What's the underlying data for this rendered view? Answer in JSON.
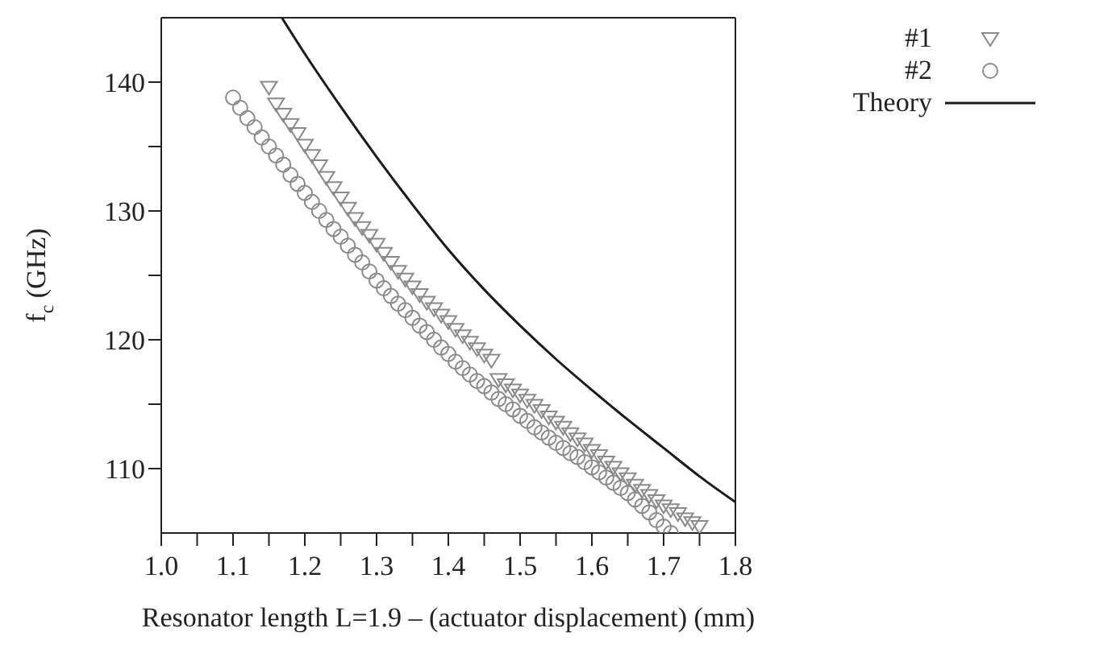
{
  "chart_data": {
    "type": "scatter",
    "xlabel": "Resonator length L=1.9 – (actuator displacement) (mm)",
    "ylabel": "f$_{c}$ (GHz)",
    "xlim": [
      1.0,
      1.8
    ],
    "ylim": [
      105,
      145
    ],
    "xticks": [
      {
        "value": 1.0,
        "label": "1.0"
      },
      {
        "value": 1.05,
        "label": null
      },
      1.1,
      {
        "value": 1.15,
        "label": null
      },
      1.2,
      {
        "value": 1.25,
        "label": null
      },
      1.3,
      {
        "value": 1.35,
        "label": null
      },
      1.4,
      {
        "value": 1.45,
        "label": null
      },
      1.5,
      {
        "value": 1.55,
        "label": null
      },
      1.6,
      {
        "value": 1.65,
        "label": null
      },
      1.7,
      {
        "value": 1.75,
        "label": null
      },
      1.8
    ],
    "yticks": [
      110,
      {
        "value": 115,
        "label": null
      },
      120,
      {
        "value": 125,
        "label": null
      },
      130,
      {
        "value": 135,
        "label": null
      },
      140
    ],
    "grid": false,
    "legend": "top right",
    "series": [
      {
        "name": "#1",
        "marker": "triangle",
        "color": "#8a8a8a",
        "x": [
          1.15,
          1.16,
          1.17,
          1.18,
          1.19,
          1.2,
          1.21,
          1.22,
          1.23,
          1.24,
          1.25,
          1.26,
          1.27,
          1.28,
          1.29,
          1.3,
          1.31,
          1.32,
          1.33,
          1.34,
          1.35,
          1.36,
          1.37,
          1.38,
          1.39,
          1.4,
          1.41,
          1.42,
          1.43,
          1.44,
          1.45,
          1.46,
          1.47,
          1.48,
          1.49,
          1.5,
          1.51,
          1.52,
          1.53,
          1.54,
          1.55,
          1.56,
          1.57,
          1.58,
          1.59,
          1.6,
          1.61,
          1.62,
          1.63,
          1.64,
          1.65,
          1.66,
          1.67,
          1.68,
          1.69,
          1.7,
          1.71,
          1.72,
          1.73,
          1.74,
          1.75
        ],
        "values": [
          139.6,
          138.3,
          137.5,
          136.7,
          136.0,
          135.1,
          134.3,
          133.5,
          132.6,
          131.8,
          131.0,
          130.2,
          129.4,
          128.7,
          128.1,
          127.4,
          126.7,
          126.0,
          125.3,
          124.7,
          124.1,
          123.5,
          122.9,
          122.4,
          121.9,
          121.4,
          120.8,
          120.3,
          119.8,
          119.3,
          118.8,
          118.4,
          116.9,
          116.5,
          116.1,
          115.7,
          115.3,
          114.9,
          114.5,
          114.0,
          113.6,
          113.2,
          112.7,
          112.3,
          111.9,
          111.4,
          111.0,
          110.5,
          110.1,
          109.6,
          109.2,
          108.7,
          108.3,
          107.9,
          107.5,
          107.1,
          106.8,
          106.5,
          106.1,
          105.8,
          105.5
        ]
      },
      {
        "name": "#2",
        "marker": "circle",
        "color": "#8a8a8a",
        "x": [
          1.1,
          1.11,
          1.12,
          1.13,
          1.14,
          1.15,
          1.16,
          1.17,
          1.18,
          1.19,
          1.2,
          1.21,
          1.22,
          1.23,
          1.24,
          1.25,
          1.26,
          1.27,
          1.28,
          1.29,
          1.3,
          1.31,
          1.32,
          1.33,
          1.34,
          1.35,
          1.36,
          1.37,
          1.38,
          1.39,
          1.4,
          1.41,
          1.42,
          1.43,
          1.44,
          1.45,
          1.46,
          1.47,
          1.48,
          1.49,
          1.5,
          1.51,
          1.52,
          1.53,
          1.54,
          1.55,
          1.56,
          1.57,
          1.58,
          1.59,
          1.6,
          1.61,
          1.62,
          1.63,
          1.64,
          1.65,
          1.66,
          1.67,
          1.68,
          1.69,
          1.7,
          1.71
        ],
        "values": [
          138.8,
          138.0,
          137.2,
          136.5,
          135.7,
          135.0,
          134.3,
          133.6,
          132.8,
          132.1,
          131.4,
          130.7,
          130.0,
          129.3,
          128.6,
          128.0,
          127.3,
          126.6,
          126.0,
          125.3,
          124.6,
          124.0,
          123.4,
          122.8,
          122.3,
          121.7,
          121.1,
          120.6,
          120.0,
          119.4,
          118.9,
          118.3,
          117.8,
          117.3,
          116.8,
          116.4,
          115.9,
          115.4,
          115.0,
          114.6,
          114.1,
          113.7,
          113.2,
          112.8,
          112.4,
          112.0,
          111.6,
          111.2,
          110.9,
          110.5,
          110.1,
          109.7,
          109.3,
          108.9,
          108.5,
          108.1,
          107.6,
          107.1,
          106.6,
          106.0,
          105.5,
          105.0
        ]
      },
      {
        "name": "Theory",
        "type": "line",
        "marker": "none",
        "line_style": "solid",
        "color": "#1a1a1a",
        "x": [
          1.168,
          1.2,
          1.25,
          1.3,
          1.35,
          1.4,
          1.45,
          1.5,
          1.55,
          1.6,
          1.65,
          1.7,
          1.75,
          1.8
        ],
        "values": [
          145,
          142.2,
          138.1,
          134.2,
          130.5,
          127.0,
          123.9,
          121.1,
          118.5,
          116.1,
          113.8,
          111.6,
          109.4,
          107.4
        ]
      }
    ]
  }
}
